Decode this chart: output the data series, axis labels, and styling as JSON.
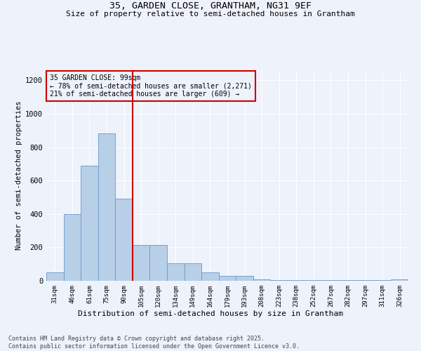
{
  "title_line1": "35, GARDEN CLOSE, GRANTHAM, NG31 9EF",
  "title_line2": "Size of property relative to semi-detached houses in Grantham",
  "xlabel": "Distribution of semi-detached houses by size in Grantham",
  "ylabel": "Number of semi-detached properties",
  "categories": [
    "31sqm",
    "46sqm",
    "61sqm",
    "75sqm",
    "90sqm",
    "105sqm",
    "120sqm",
    "134sqm",
    "149sqm",
    "164sqm",
    "179sqm",
    "193sqm",
    "208sqm",
    "223sqm",
    "238sqm",
    "252sqm",
    "267sqm",
    "282sqm",
    "297sqm",
    "311sqm",
    "326sqm"
  ],
  "values": [
    50,
    400,
    690,
    880,
    490,
    215,
    215,
    105,
    105,
    50,
    30,
    30,
    10,
    5,
    5,
    3,
    3,
    3,
    3,
    3,
    10
  ],
  "bar_color": "#b8cfe8",
  "bar_edge_color": "#6699cc",
  "vline_x_index": 4.5,
  "vline_color": "#cc0000",
  "annotation_title": "35 GARDEN CLOSE: 99sqm",
  "annotation_line2": "← 78% of semi-detached houses are smaller (2,271)",
  "annotation_line3": "21% of semi-detached houses are larger (609) →",
  "annotation_box_color": "#cc0000",
  "ylim": [
    0,
    1260
  ],
  "yticks": [
    0,
    200,
    400,
    600,
    800,
    1000,
    1200
  ],
  "footer_line1": "Contains HM Land Registry data © Crown copyright and database right 2025.",
  "footer_line2": "Contains public sector information licensed under the Open Government Licence v3.0.",
  "background_color": "#eef2fb"
}
